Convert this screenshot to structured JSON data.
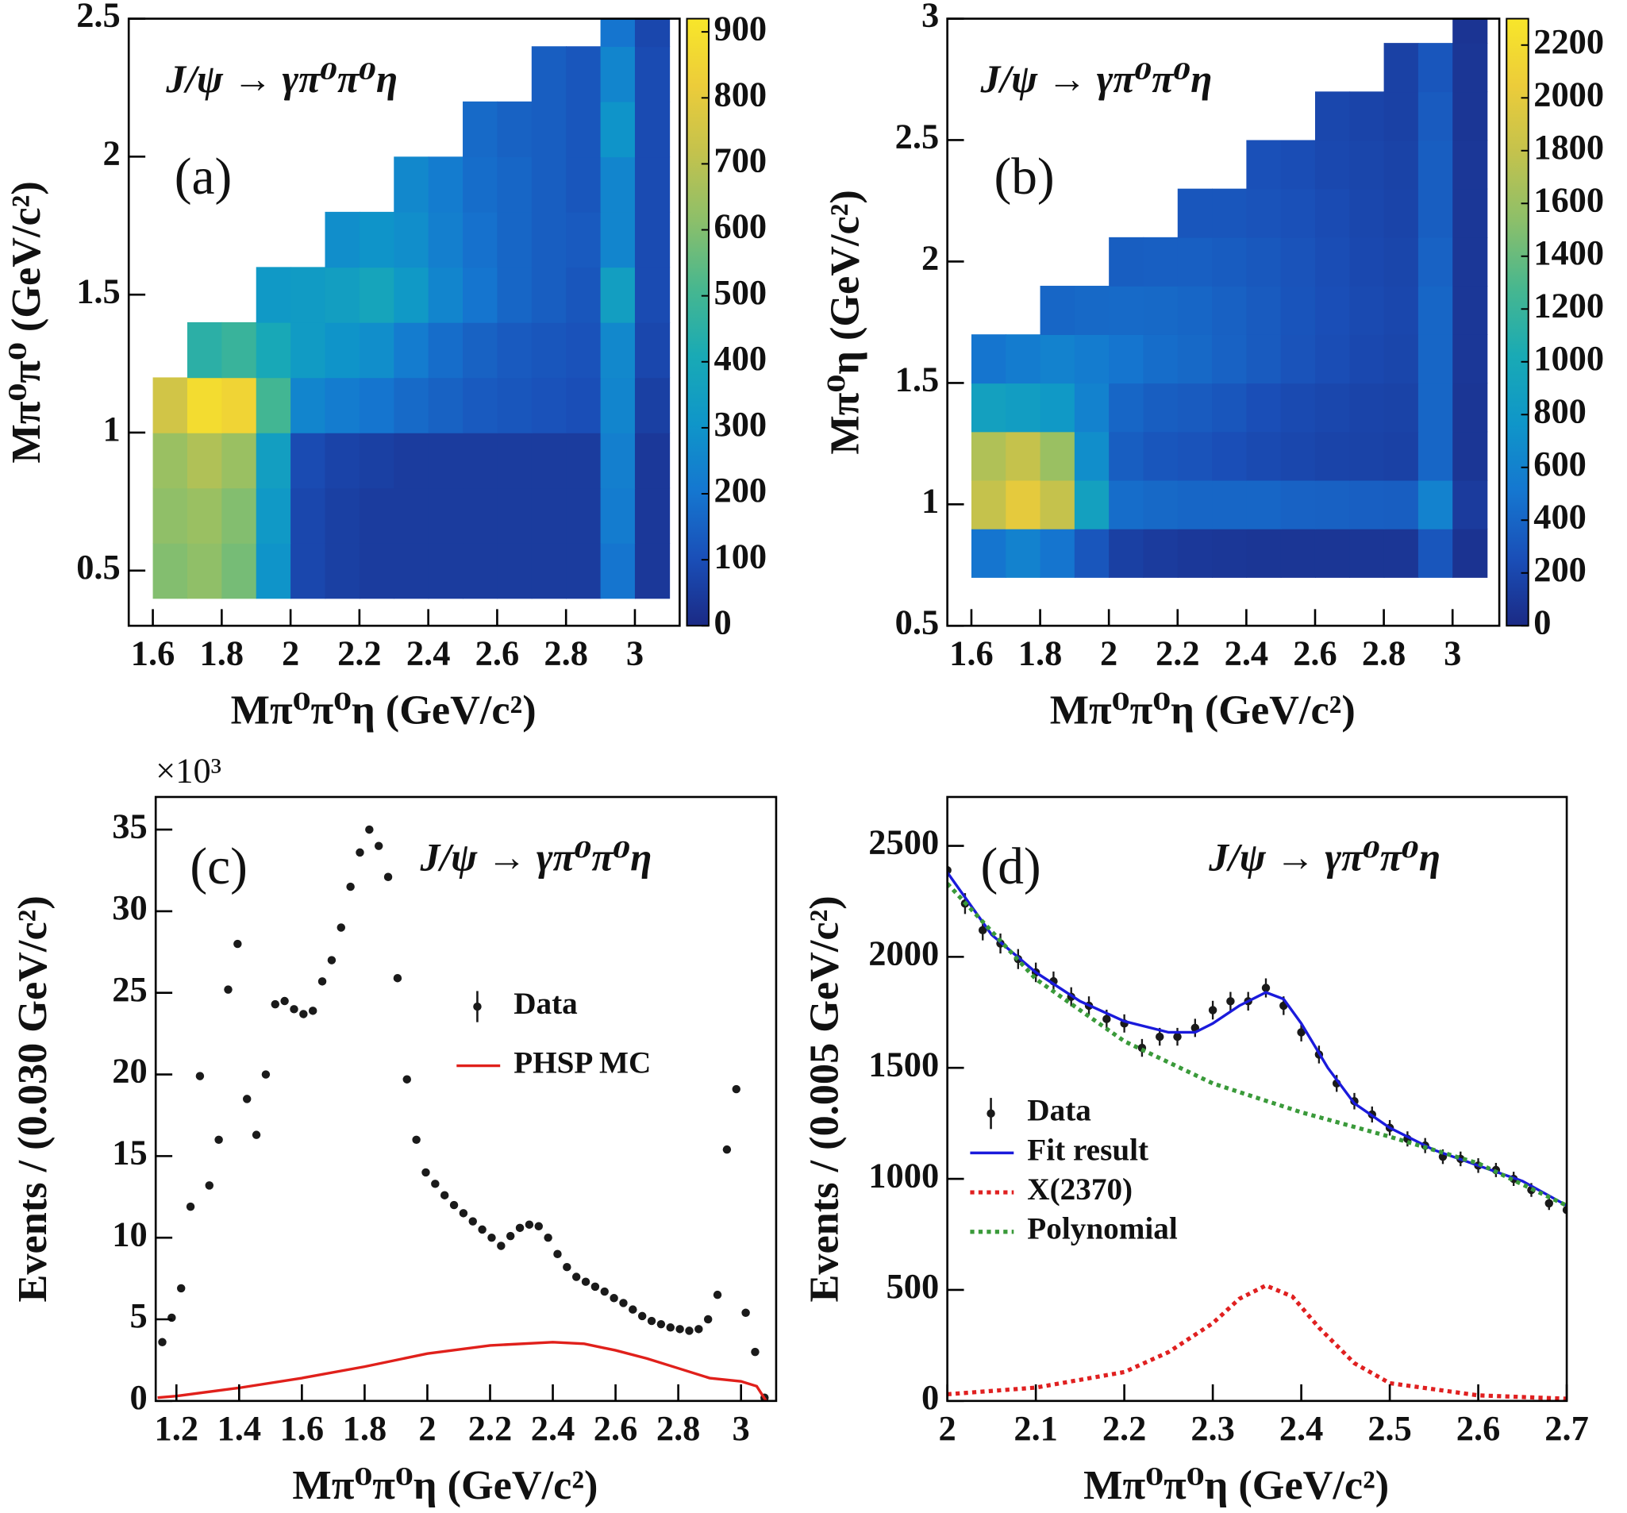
{
  "chart_data": [
    {
      "type": "heatmap",
      "label": "(a)",
      "annotation": "J/ψ → γπ⁰π⁰η",
      "xlabel": "Mπ⁰π⁰η (GeV/c²)",
      "ylabel": "Mπ⁰π⁰ (GeV/c²)",
      "xlim": [
        1.53,
        3.13
      ],
      "xticks": [
        1.6,
        1.8,
        2,
        2.2,
        2.4,
        2.6,
        2.8,
        3
      ],
      "ylim": [
        0.3,
        2.5
      ],
      "yticks": [
        0.5,
        1,
        1.5,
        2,
        2.5
      ],
      "zlim": [
        0,
        920
      ],
      "zticks": [
        0,
        100,
        200,
        300,
        400,
        500,
        600,
        700,
        800,
        900
      ],
      "colormap": [
        "#1b2a85",
        "#1a4fb8",
        "#1577d0",
        "#0f96c9",
        "#19aab5",
        "#47b78f",
        "#8cbf6a",
        "#c3c24d",
        "#eccc3a",
        "#f8e62a"
      ],
      "xbins": [
        1.6,
        1.7,
        1.8,
        1.9,
        2.0,
        2.1,
        2.2,
        2.3,
        2.4,
        2.5,
        2.6,
        2.7,
        2.8,
        2.9,
        3.0,
        3.1
      ],
      "ybins": [
        0.4,
        0.6,
        0.8,
        1.0,
        1.2,
        1.4,
        1.6,
        1.8,
        2.0,
        2.2,
        2.4,
        2.6
      ],
      "z": [
        [
          600,
          620,
          580,
          300,
          80,
          60,
          50,
          50,
          50,
          50,
          50,
          50,
          50,
          200,
          40
        ],
        [
          620,
          640,
          600,
          320,
          80,
          60,
          50,
          50,
          50,
          50,
          50,
          50,
          50,
          220,
          40
        ],
        [
          640,
          680,
          640,
          350,
          90,
          70,
          60,
          50,
          50,
          50,
          50,
          50,
          50,
          230,
          40
        ],
        [
          750,
          880,
          850,
          500,
          250,
          220,
          200,
          170,
          150,
          130,
          120,
          110,
          100,
          250,
          60
        ],
        [
          null,
          450,
          480,
          400,
          330,
          300,
          280,
          220,
          180,
          150,
          130,
          120,
          110,
          260,
          80
        ],
        [
          null,
          null,
          null,
          320,
          330,
          350,
          380,
          320,
          250,
          200,
          160,
          140,
          120,
          350,
          90
        ],
        [
          null,
          null,
          null,
          null,
          null,
          280,
          300,
          280,
          230,
          190,
          160,
          140,
          130,
          250,
          90
        ],
        [
          null,
          null,
          null,
          null,
          null,
          null,
          null,
          260,
          220,
          180,
          160,
          140,
          120,
          250,
          90
        ],
        [
          null,
          null,
          null,
          null,
          null,
          null,
          null,
          null,
          null,
          170,
          150,
          140,
          120,
          300,
          90
        ],
        [
          null,
          null,
          null,
          null,
          null,
          null,
          null,
          null,
          null,
          null,
          null,
          140,
          120,
          250,
          90
        ],
        [
          null,
          null,
          null,
          null,
          null,
          null,
          null,
          null,
          null,
          null,
          null,
          null,
          null,
          200,
          80
        ]
      ]
    },
    {
      "type": "heatmap",
      "label": "(b)",
      "annotation": "J/ψ → γπ⁰π⁰η",
      "xlabel": "Mπ⁰π⁰η (GeV/c²)",
      "ylabel": "Mπ⁰η (GeV/c²)",
      "xlim": [
        1.53,
        3.136
      ],
      "xticks": [
        1.6,
        1.8,
        2,
        2.2,
        2.4,
        2.6,
        2.8,
        3
      ],
      "ylim": [
        0.5,
        3
      ],
      "yticks": [
        0.5,
        1,
        1.5,
        2,
        2.5,
        3
      ],
      "zlim": [
        0,
        2300
      ],
      "zticks": [
        0,
        200,
        400,
        600,
        800,
        1000,
        1200,
        1400,
        1600,
        1800,
        2000,
        2200
      ],
      "colormap": [
        "#1b2a85",
        "#1a4fb8",
        "#1577d0",
        "#0f96c9",
        "#19aab5",
        "#47b78f",
        "#8cbf6a",
        "#c3c24d",
        "#eccc3a",
        "#f8e62a"
      ],
      "xbins": [
        1.6,
        1.7,
        1.8,
        1.9,
        2.0,
        2.1,
        2.2,
        2.3,
        2.4,
        2.5,
        2.6,
        2.7,
        2.8,
        2.9,
        3.0,
        3.1
      ],
      "ybins": [
        0.7,
        0.9,
        1.1,
        1.3,
        1.5,
        1.7,
        1.9,
        2.1,
        2.3,
        2.5,
        2.7,
        2.9,
        3.1
      ],
      "z": [
        [
          500,
          600,
          500,
          300,
          150,
          120,
          100,
          90,
          80,
          80,
          80,
          80,
          80,
          300,
          60
        ],
        [
          1800,
          2000,
          1800,
          900,
          450,
          420,
          400,
          400,
          400,
          380,
          370,
          360,
          350,
          600,
          120
        ],
        [
          1700,
          1800,
          1600,
          700,
          350,
          300,
          280,
          250,
          220,
          200,
          180,
          170,
          160,
          400,
          80
        ],
        [
          900,
          850,
          800,
          600,
          400,
          350,
          330,
          300,
          250,
          220,
          200,
          180,
          170,
          400,
          80
        ],
        [
          500,
          550,
          600,
          550,
          500,
          450,
          420,
          380,
          330,
          280,
          240,
          210,
          190,
          400,
          90
        ],
        [
          null,
          null,
          400,
          420,
          430,
          420,
          400,
          370,
          330,
          290,
          250,
          220,
          200,
          400,
          90
        ],
        [
          null,
          null,
          null,
          null,
          350,
          360,
          360,
          340,
          310,
          280,
          240,
          210,
          190,
          380,
          90
        ],
        [
          null,
          null,
          null,
          null,
          null,
          null,
          300,
          300,
          280,
          260,
          230,
          200,
          180,
          350,
          90
        ],
        [
          null,
          null,
          null,
          null,
          null,
          null,
          null,
          null,
          260,
          240,
          210,
          190,
          170,
          350,
          90
        ],
        [
          null,
          null,
          null,
          null,
          null,
          null,
          null,
          null,
          null,
          null,
          200,
          180,
          160,
          330,
          80
        ],
        [
          null,
          null,
          null,
          null,
          null,
          null,
          null,
          null,
          null,
          null,
          null,
          null,
          160,
          300,
          80
        ],
        [
          null,
          null,
          null,
          null,
          null,
          null,
          null,
          null,
          null,
          null,
          null,
          null,
          null,
          null,
          70
        ]
      ]
    },
    {
      "type": "scatter",
      "label": "(c)",
      "annotation": "J/ψ → γπ⁰π⁰η",
      "xlabel": "Mπ⁰π⁰η (GeV/c²)",
      "ylabel": "Events / (0.030 GeV/c²)",
      "ymultiplier": "×10³",
      "xlim": [
        1.134,
        3.112
      ],
      "xticks": [
        1.2,
        1.4,
        1.6,
        1.8,
        2,
        2.2,
        2.4,
        2.6,
        2.8,
        3
      ],
      "ylim": [
        0,
        37
      ],
      "yticks": [
        0,
        5,
        10,
        15,
        20,
        25,
        30,
        35
      ],
      "series": [
        {
          "name": "Data",
          "style": "points",
          "color": "#1a1a1a",
          "x": [
            1.155,
            1.185,
            1.215,
            1.245,
            1.275,
            1.305,
            1.335,
            1.365,
            1.395,
            1.425,
            1.455,
            1.485,
            1.515,
            1.545,
            1.575,
            1.605,
            1.635,
            1.665,
            1.695,
            1.725,
            1.755,
            1.785,
            1.815,
            1.845,
            1.875,
            1.905,
            1.935,
            1.965,
            1.995,
            2.025,
            2.055,
            2.085,
            2.115,
            2.145,
            2.175,
            2.205,
            2.235,
            2.265,
            2.295,
            2.325,
            2.355,
            2.385,
            2.415,
            2.445,
            2.475,
            2.505,
            2.535,
            2.565,
            2.595,
            2.625,
            2.655,
            2.685,
            2.715,
            2.745,
            2.775,
            2.805,
            2.835,
            2.865,
            2.895,
            2.925,
            2.955,
            2.985,
            3.015,
            3.045,
            3.075
          ],
          "values": [
            3.6,
            5.1,
            6.9,
            11.9,
            19.9,
            13.2,
            16.0,
            25.2,
            28.0,
            18.5,
            16.3,
            20.0,
            24.3,
            24.5,
            24.0,
            23.7,
            23.9,
            25.7,
            27.0,
            29.0,
            31.5,
            33.6,
            35.0,
            34.0,
            32.1,
            25.9,
            19.7,
            16.0,
            14.0,
            13.3,
            12.6,
            12.0,
            11.5,
            11.0,
            10.5,
            10.0,
            9.5,
            10.1,
            10.6,
            10.8,
            10.7,
            10.0,
            9.0,
            8.2,
            7.6,
            7.3,
            7.0,
            6.7,
            6.3,
            6.0,
            5.6,
            5.2,
            4.9,
            4.7,
            4.5,
            4.4,
            4.3,
            4.4,
            5.0,
            6.5,
            15.4,
            19.1,
            5.4,
            3.0,
            0.2
          ]
        },
        {
          "name": "PHSP MC",
          "style": "line",
          "color": "#e0201b",
          "x": [
            1.14,
            1.2,
            1.4,
            1.6,
            1.8,
            2.0,
            2.2,
            2.4,
            2.5,
            2.6,
            2.7,
            2.8,
            2.9,
            3.0,
            3.05,
            3.08
          ],
          "values": [
            0.2,
            0.3,
            0.8,
            1.4,
            2.1,
            2.9,
            3.4,
            3.6,
            3.5,
            3.1,
            2.6,
            2.0,
            1.4,
            1.2,
            0.9,
            0.0
          ]
        }
      ]
    },
    {
      "type": "scatter",
      "label": "(d)",
      "annotation": "J/ψ → γπ⁰π⁰η",
      "xlabel": "Mπ⁰π⁰η (GeV/c²)",
      "ylabel": "Events / (0.005 GeV/c²)",
      "xlim": [
        2,
        2.7
      ],
      "xticks": [
        2,
        2.1,
        2.2,
        2.3,
        2.4,
        2.5,
        2.6,
        2.7
      ],
      "ylim": [
        0,
        2720
      ],
      "yticks": [
        0,
        500,
        1000,
        1500,
        2000,
        2500
      ],
      "series": [
        {
          "name": "Data",
          "style": "points",
          "color": "#1a1a1a",
          "x": [
            2.0,
            2.02,
            2.04,
            2.06,
            2.08,
            2.1,
            2.12,
            2.14,
            2.16,
            2.18,
            2.2,
            2.22,
            2.24,
            2.26,
            2.28,
            2.3,
            2.32,
            2.34,
            2.36,
            2.38,
            2.4,
            2.42,
            2.44,
            2.46,
            2.48,
            2.5,
            2.52,
            2.54,
            2.56,
            2.58,
            2.6,
            2.62,
            2.64,
            2.66,
            2.68,
            2.7
          ],
          "values": [
            2390,
            2240,
            2120,
            2060,
            1990,
            1930,
            1890,
            1820,
            1780,
            1720,
            1700,
            1590,
            1640,
            1640,
            1680,
            1760,
            1800,
            1800,
            1860,
            1780,
            1660,
            1560,
            1430,
            1350,
            1290,
            1230,
            1180,
            1150,
            1100,
            1090,
            1060,
            1040,
            1000,
            950,
            890,
            860
          ],
          "errors": [
            48,
            47,
            46,
            45,
            45,
            44,
            44,
            43,
            42,
            42,
            41,
            40,
            40,
            40,
            41,
            42,
            42,
            42,
            43,
            42,
            41,
            40,
            38,
            37,
            36,
            35,
            34,
            34,
            33,
            33,
            33,
            32,
            32,
            31,
            30,
            30
          ]
        },
        {
          "name": "Fit result",
          "style": "line",
          "color": "#1a1adb",
          "x": [
            2.0,
            2.05,
            2.1,
            2.15,
            2.2,
            2.25,
            2.28,
            2.3,
            2.33,
            2.36,
            2.38,
            2.4,
            2.43,
            2.46,
            2.5,
            2.55,
            2.6,
            2.65,
            2.7
          ],
          "values": [
            2380,
            2100,
            1930,
            1800,
            1710,
            1660,
            1660,
            1700,
            1780,
            1840,
            1810,
            1700,
            1500,
            1340,
            1230,
            1130,
            1060,
            990,
            880
          ]
        },
        {
          "name": "X(2370)",
          "style": "dotted",
          "color": "#e02020",
          "x": [
            2.0,
            2.1,
            2.2,
            2.25,
            2.3,
            2.33,
            2.36,
            2.39,
            2.42,
            2.46,
            2.5,
            2.6,
            2.7
          ],
          "values": [
            30,
            60,
            130,
            220,
            350,
            460,
            520,
            470,
            330,
            170,
            80,
            25,
            10
          ]
        },
        {
          "name": "Polynomial",
          "style": "dotted",
          "color": "#3a9a3a",
          "x": [
            2.0,
            2.1,
            2.2,
            2.3,
            2.4,
            2.5,
            2.6,
            2.7
          ],
          "values": [
            2330,
            1900,
            1620,
            1430,
            1300,
            1190,
            1070,
            880
          ]
        }
      ]
    }
  ]
}
